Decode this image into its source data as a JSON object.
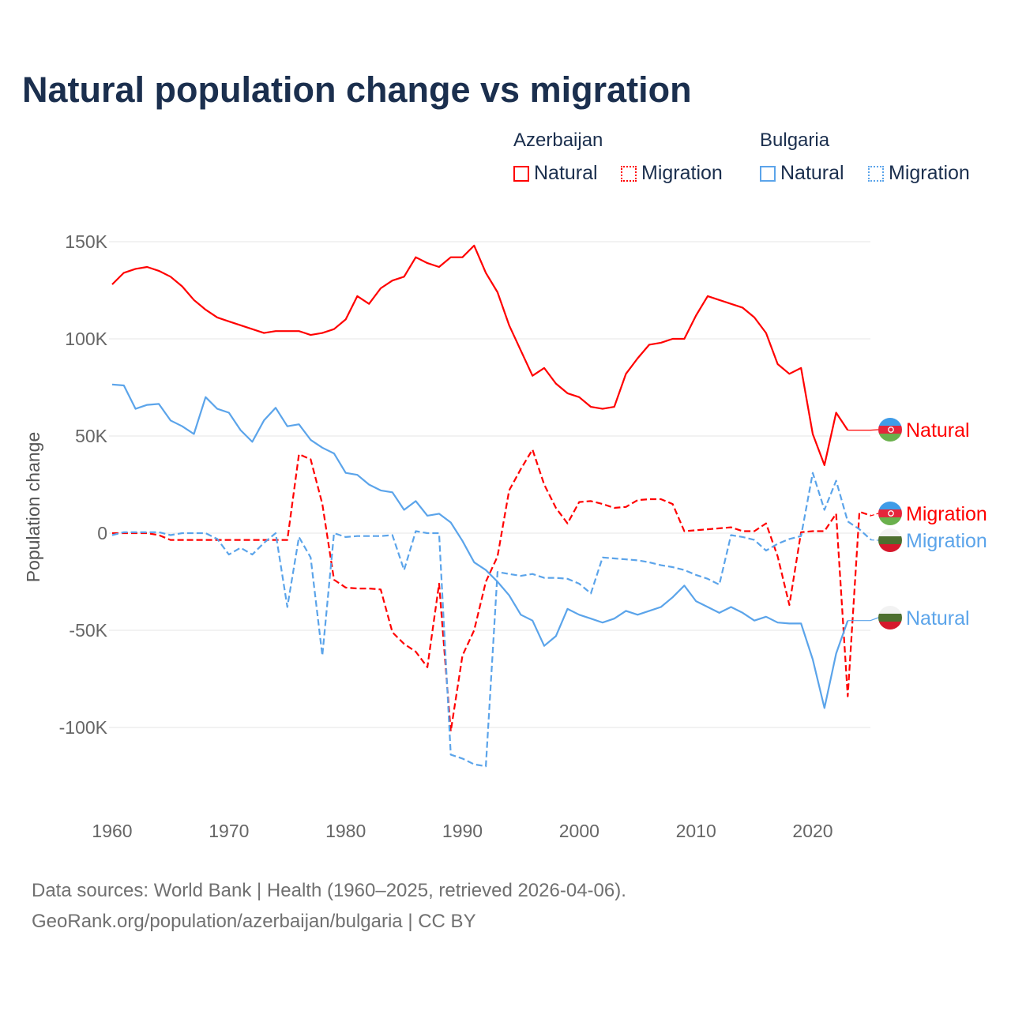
{
  "chart_data": {
    "type": "line",
    "title": "Natural population change vs migration",
    "ylabel": "Population change",
    "xlabel": "",
    "xlim": [
      1960,
      2025
    ],
    "ylim": [
      -130000,
      160000
    ],
    "x_ticks": [
      1960,
      1970,
      1980,
      1990,
      2000,
      2010,
      2020
    ],
    "x_tick_labels": [
      "1960",
      "1970",
      "1980",
      "1990",
      "2000",
      "2010",
      "2020"
    ],
    "y_ticks": [
      150000,
      100000,
      50000,
      0,
      -50000,
      -100000
    ],
    "y_tick_labels": [
      "150K",
      "100K",
      "50K",
      "0",
      "-50K",
      "-100K"
    ],
    "grid": true,
    "legend": {
      "placement": "top-right",
      "groups": [
        {
          "country": "Azerbaijan",
          "items": [
            "Natural",
            "Migration"
          ]
        },
        {
          "country": "Bulgaria",
          "items": [
            "Natural",
            "Migration"
          ]
        }
      ]
    },
    "x_start": 1960,
    "series": [
      {
        "name": "Natural",
        "country": "Azerbaijan",
        "color": "#ff0000",
        "dashed": false,
        "end_label": "Natural",
        "values_k": [
          128,
          134,
          136,
          137,
          135,
          132,
          127,
          120,
          115,
          111,
          109,
          107,
          105,
          103,
          104,
          104,
          104,
          102,
          103,
          105,
          110,
          122,
          118,
          126,
          130,
          132,
          142,
          139,
          137,
          142,
          142,
          148,
          134,
          124,
          107,
          94,
          81,
          85,
          77,
          72,
          70,
          65,
          64,
          65,
          82,
          90,
          97,
          98,
          100,
          100,
          112,
          122,
          120,
          118,
          116,
          111,
          103,
          87,
          82,
          85,
          51,
          35,
          62,
          53
        ]
      },
      {
        "name": "Migration",
        "country": "Azerbaijan",
        "color": "#ff0000",
        "dashed": true,
        "end_label": "Migration",
        "values_k": [
          0,
          0,
          0,
          0,
          -1,
          -3.5,
          -3.5,
          -3.5,
          -3.5,
          -3.5,
          -3.5,
          -3.5,
          -3.5,
          -3.5,
          -3.5,
          -3.5,
          40.6,
          38,
          15,
          -24,
          -28,
          -28.5,
          -28.5,
          -29,
          -51,
          -57,
          -61,
          -69,
          -26,
          -102,
          -63,
          -50,
          -25,
          -12,
          22,
          33,
          43,
          25,
          13,
          5,
          16,
          16.5,
          15,
          13,
          13.5,
          17,
          17.5,
          17.5,
          15,
          1,
          1.5,
          2,
          2.5,
          3,
          1,
          1,
          5,
          -12,
          -37,
          0.5,
          1,
          1,
          10,
          -84,
          11,
          9
        ]
      },
      {
        "name": "Migration",
        "country": "Bulgaria",
        "color": "#5ba4ea",
        "dashed": true,
        "end_label": "Migration",
        "values_k": [
          -1,
          0.5,
          0.5,
          0.5,
          0.5,
          -1,
          0,
          0,
          0,
          -3,
          -11,
          -7.5,
          -11,
          -5,
          0,
          -38,
          -2,
          -12.5,
          -63,
          0,
          -2,
          -1.5,
          -1.5,
          -1.5,
          -1,
          -19,
          1,
          0,
          0,
          -114,
          -116,
          -119,
          -120,
          -20,
          -21,
          -22,
          -21,
          -23,
          -23,
          -23.5,
          -26,
          -31,
          -12.5,
          -13,
          -13.5,
          -14,
          -15,
          -16.5,
          -17.5,
          -19,
          -21.5,
          -23.5,
          -26.5,
          -1,
          -2,
          -3.5,
          -9,
          -5.5,
          -3,
          -1.5,
          31,
          12,
          27,
          6,
          2,
          -3.5
        ]
      },
      {
        "name": "Natural",
        "country": "Bulgaria",
        "color": "#5ba4ea",
        "dashed": false,
        "end_label": "Natural",
        "values_k": [
          76.5,
          76,
          64,
          66,
          66.5,
          58,
          55,
          51,
          70,
          64,
          62,
          53,
          47,
          58,
          64.5,
          55,
          56,
          48,
          44,
          41,
          31,
          30,
          25,
          22,
          21,
          12,
          16.5,
          9,
          10,
          5.5,
          -4,
          -15,
          -19,
          -25,
          -32,
          -42,
          -45,
          -58,
          -53,
          -39,
          -42,
          -44,
          -46,
          -44,
          -40,
          -42,
          -40,
          -38,
          -33,
          -27,
          -35,
          -38,
          -41,
          -38,
          -41,
          -45,
          -43,
          -46,
          -46.5,
          -46.5,
          -65,
          -90,
          -62,
          -45
        ]
      }
    ]
  },
  "footer": {
    "line1": "Data sources: World Bank | Health (1960–2025, retrieved 2026-04-06).",
    "line2": "GeoRank.org/population/azerbaijan/bulgaria | CC BY"
  }
}
